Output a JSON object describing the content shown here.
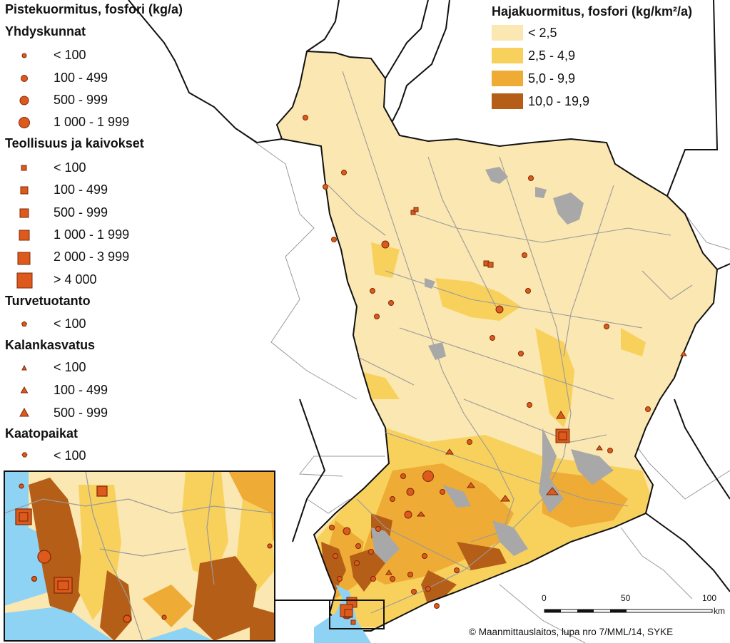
{
  "point_legend": {
    "title": "Pistekuormitus, fosfori (kg/a)",
    "groups": [
      {
        "title": "Yhdyskunnat",
        "shape": "circle",
        "items": [
          "< 100",
          "100 - 499",
          "500 - 999",
          "1 000 - 1 999"
        ]
      },
      {
        "title": "Teollisuus ja kaivokset",
        "shape": "square",
        "items": [
          "< 100",
          "100 - 499",
          "500 - 999",
          "1 000 - 1 999",
          "2 000 - 3 999",
          "> 4 000"
        ]
      },
      {
        "title": "Turvetuotanto",
        "shape": "pentagon",
        "items": [
          "< 100"
        ]
      },
      {
        "title": "Kalankasvatus",
        "shape": "triangle",
        "items": [
          "< 100",
          "100 - 499",
          "500 - 999"
        ]
      },
      {
        "title": "Kaatopaikat",
        "shape": "hexagon",
        "items": [
          "< 100"
        ]
      }
    ]
  },
  "diffuse_legend": {
    "title": "Hajakuormitus, fosfori (kg/km²/a)",
    "classes": [
      {
        "label": "< 2,5",
        "color": "#fbe7b1"
      },
      {
        "label": "2,5 - 4,9",
        "color": "#f8d15d"
      },
      {
        "label": "5,0 - 9,9",
        "color": "#eeab35"
      },
      {
        "label": "10,0 - 19,9",
        "color": "#b45e17"
      }
    ]
  },
  "scale_bar": {
    "ticks": [
      "0",
      "50",
      "100"
    ],
    "unit": "km"
  },
  "credit": "© Maanmittauslaitos, lupa nro 7/MML/14, SYKE",
  "colors": {
    "symbol_fill": "#de5a1c",
    "symbol_stroke": "#7a2a08",
    "lake": "#a8a8a8",
    "sea": "#8fd3f4",
    "river": "#9a9a9a",
    "border": "#111111"
  }
}
